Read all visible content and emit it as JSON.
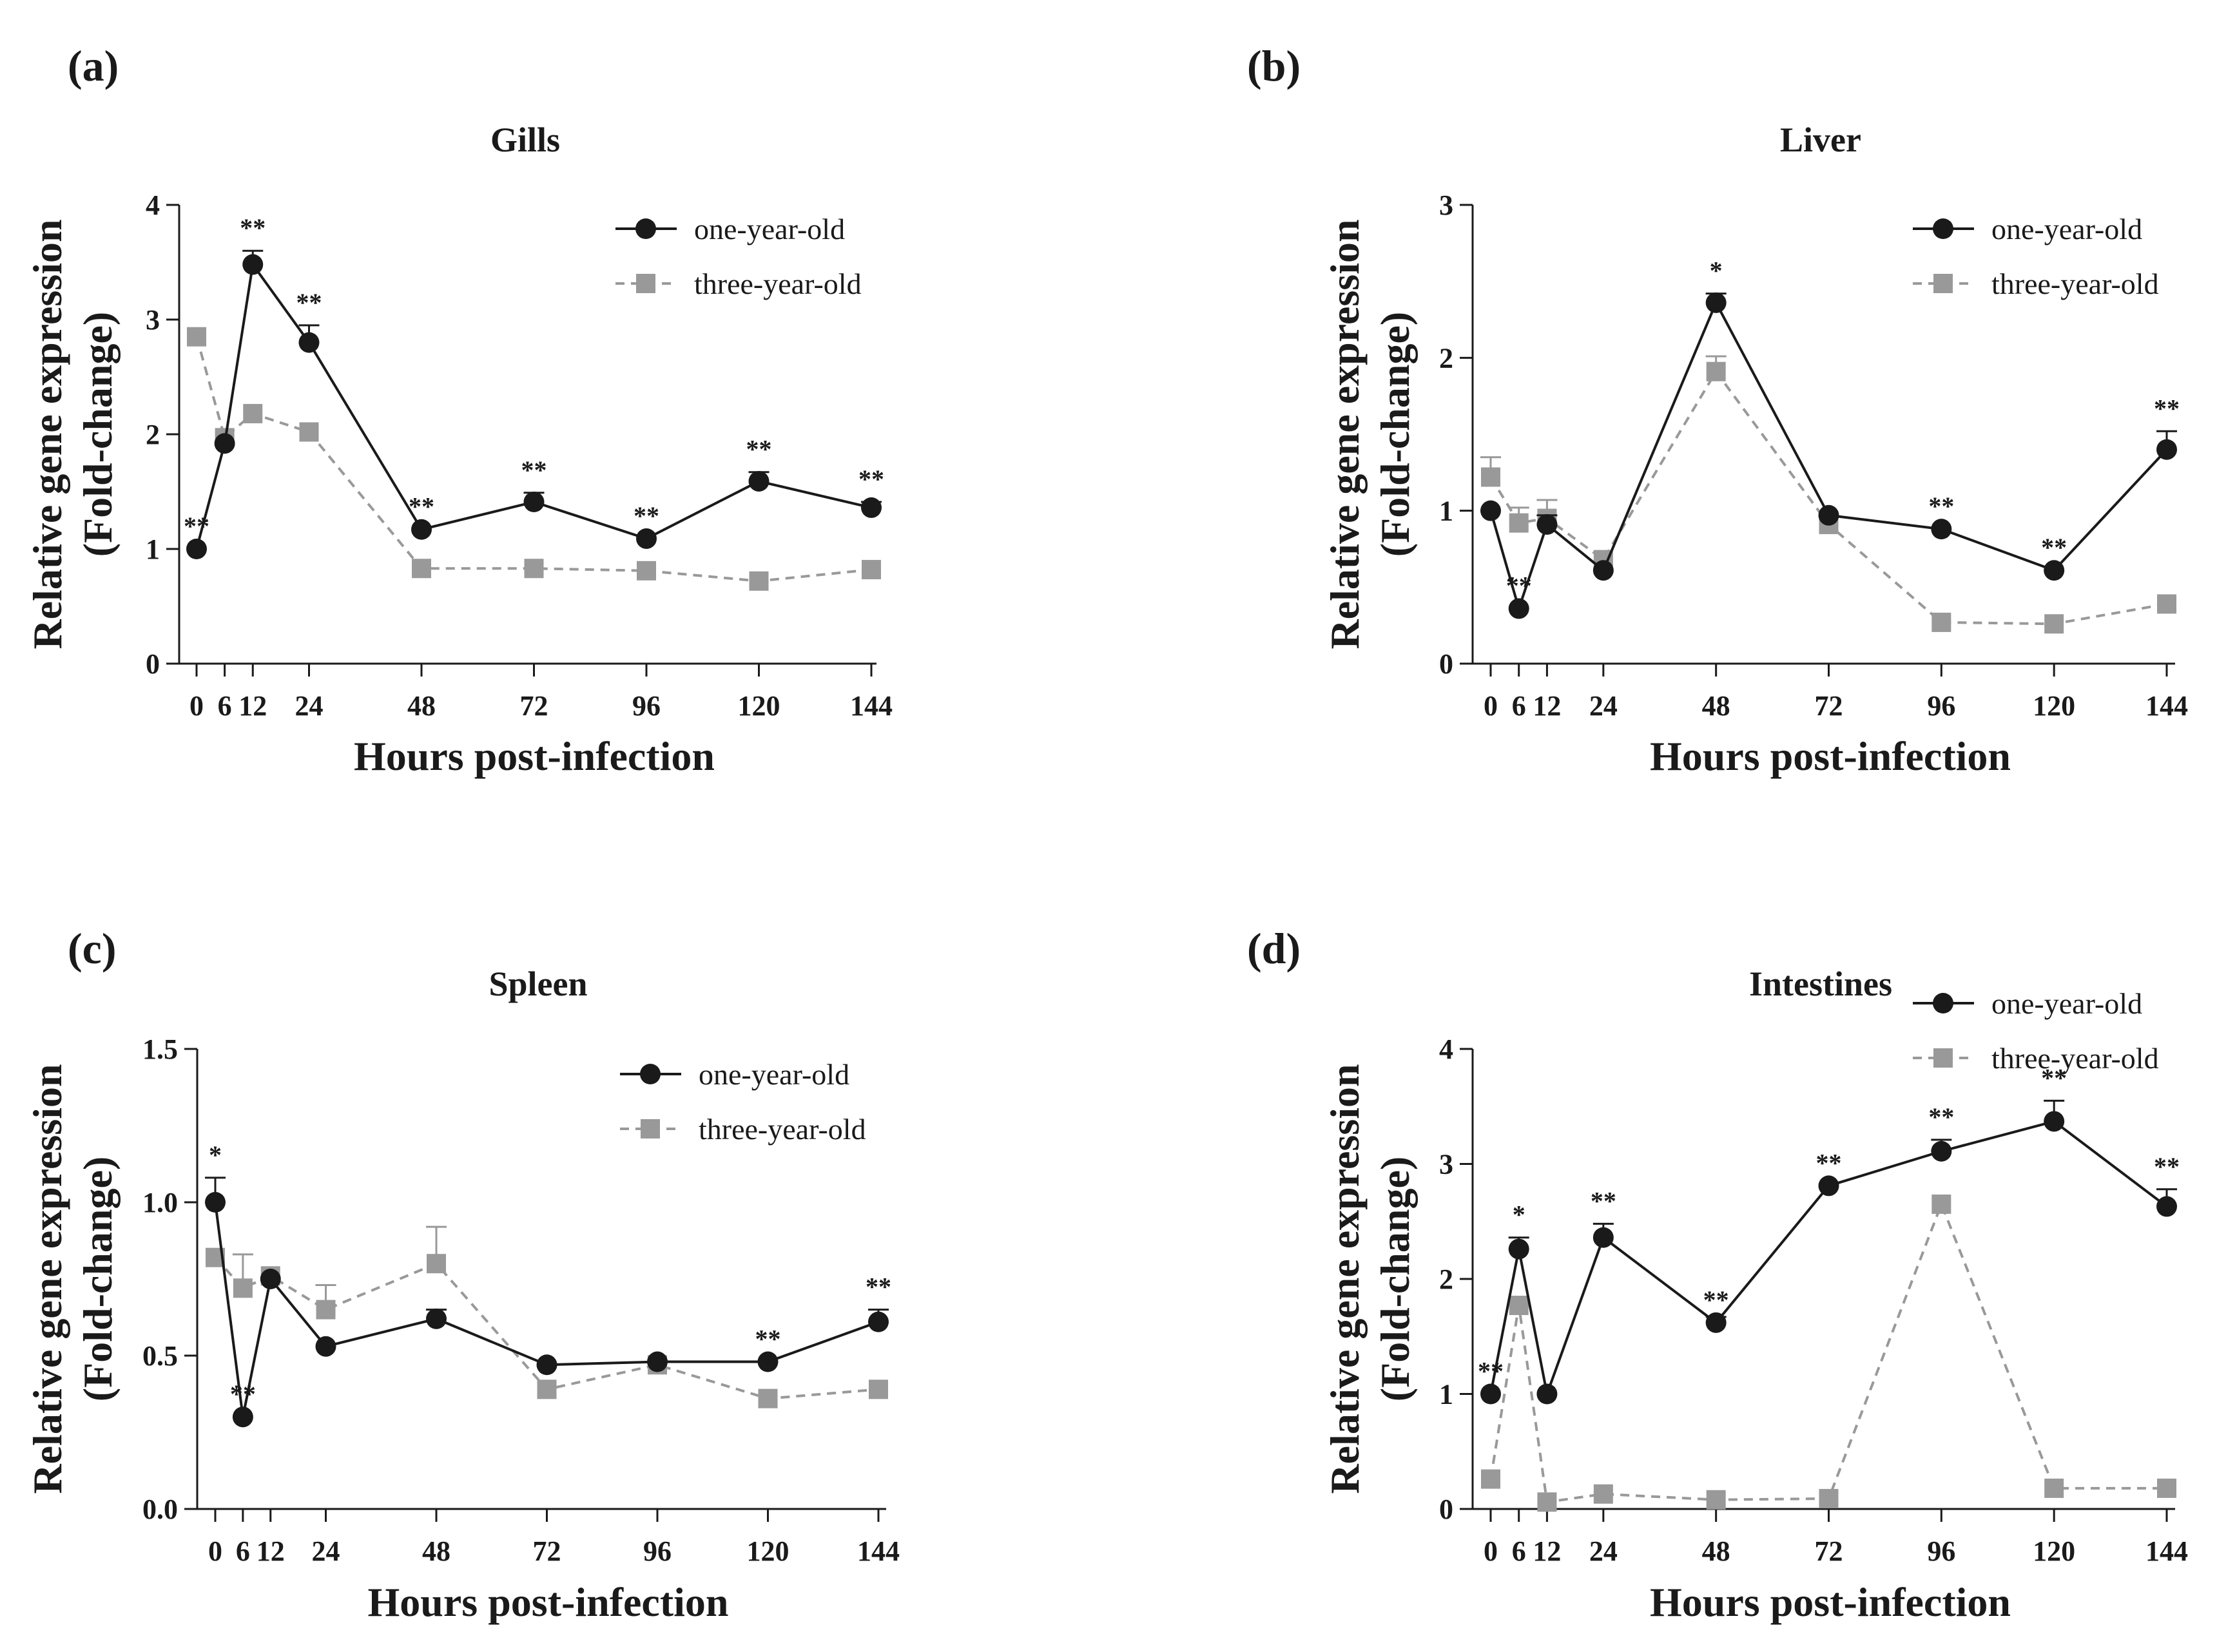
{
  "chart_data": [
    {
      "type": "line",
      "panel": "(a)",
      "title": "Gills",
      "ylabel_line1": "Relative gene expression",
      "ylabel_line2": "(Fold-change)",
      "xlabel": "Hours post-infection",
      "x": [
        0,
        6,
        12,
        24,
        48,
        72,
        96,
        120,
        144
      ],
      "ylim": [
        0,
        4
      ],
      "yticks": [
        0,
        1,
        2,
        3,
        4
      ],
      "ytick_labels": [
        "0",
        "1",
        "2",
        "3",
        "4"
      ],
      "legend_position": "top-right",
      "series": [
        {
          "name": "one-year-old",
          "style": "solid-circle",
          "color": "#1a1a1a",
          "values": [
            1.0,
            1.92,
            3.48,
            2.8,
            1.17,
            1.41,
            1.09,
            1.59,
            1.36
          ],
          "errors": [
            0,
            0,
            0.12,
            0.15,
            0,
            0.08,
            0,
            0.08,
            0.05
          ]
        },
        {
          "name": "three-year-old",
          "style": "dashed-square",
          "color": "#999999",
          "values": [
            2.85,
            1.97,
            2.18,
            2.02,
            0.83,
            0.83,
            0.81,
            0.72,
            0.82
          ],
          "errors": [
            0,
            0,
            0,
            0,
            0,
            0,
            0,
            0,
            0
          ]
        }
      ],
      "annotations": [
        {
          "x": 0,
          "y": 1.0,
          "text": "**"
        },
        {
          "x": 12,
          "y": 3.6,
          "text": "**"
        },
        {
          "x": 24,
          "y": 2.95,
          "text": "**"
        },
        {
          "x": 48,
          "y": 1.17,
          "text": "**"
        },
        {
          "x": 72,
          "y": 1.49,
          "text": "**"
        },
        {
          "x": 96,
          "y": 1.09,
          "text": "**"
        },
        {
          "x": 120,
          "y": 1.67,
          "text": "**"
        },
        {
          "x": 144,
          "y": 1.41,
          "text": "**"
        }
      ]
    },
    {
      "type": "line",
      "panel": "(b)",
      "title": "Liver",
      "ylabel_line1": "Relative gene expression",
      "ylabel_line2": "(Fold-change)",
      "xlabel": "Hours post-infection",
      "x": [
        0,
        6,
        12,
        24,
        48,
        72,
        96,
        120,
        144
      ],
      "ylim": [
        0,
        3
      ],
      "yticks": [
        0,
        1,
        2,
        3
      ],
      "ytick_labels": [
        "0",
        "1",
        "2",
        "3"
      ],
      "legend_position": "top-right",
      "series": [
        {
          "name": "one-year-old",
          "style": "solid-circle",
          "color": "#1a1a1a",
          "values": [
            1.0,
            0.36,
            0.91,
            0.61,
            2.36,
            0.97,
            0.88,
            0.61,
            1.4
          ],
          "errors": [
            0,
            0,
            0.06,
            0,
            0.06,
            0,
            0,
            0,
            0.12
          ]
        },
        {
          "name": "three-year-old",
          "style": "dashed-square",
          "color": "#999999",
          "values": [
            1.22,
            0.92,
            0.95,
            0.68,
            1.91,
            0.91,
            0.27,
            0.26,
            0.39
          ],
          "errors": [
            0.13,
            0.1,
            0.12,
            0,
            0.1,
            0,
            0,
            0,
            0
          ]
        }
      ],
      "annotations": [
        {
          "x": 6,
          "y": 0.36,
          "text": "**"
        },
        {
          "x": 48,
          "y": 2.42,
          "text": "*"
        },
        {
          "x": 96,
          "y": 0.88,
          "text": "**"
        },
        {
          "x": 120,
          "y": 0.61,
          "text": "**"
        },
        {
          "x": 144,
          "y": 1.52,
          "text": "**"
        }
      ]
    },
    {
      "type": "line",
      "panel": "(c)",
      "title": "Spleen",
      "ylabel_line1": "Relative gene expression",
      "ylabel_line2": "(Fold-change)",
      "xlabel": "Hours post-infection",
      "x": [
        0,
        6,
        12,
        24,
        48,
        72,
        96,
        120,
        144
      ],
      "ylim": [
        0,
        1.5
      ],
      "yticks": [
        0,
        0.5,
        1.0,
        1.5
      ],
      "ytick_labels": [
        "0.0",
        "0.5",
        "1.0",
        "1.5"
      ],
      "legend_position": "top-right",
      "series": [
        {
          "name": "one-year-old",
          "style": "solid-circle",
          "color": "#1a1a1a",
          "values": [
            1.0,
            0.3,
            0.75,
            0.53,
            0.62,
            0.47,
            0.48,
            0.48,
            0.61
          ],
          "errors": [
            0.08,
            0,
            0,
            0,
            0.03,
            0,
            0,
            0,
            0.04
          ]
        },
        {
          "name": "three-year-old",
          "style": "dashed-square",
          "color": "#999999",
          "values": [
            0.82,
            0.72,
            0.76,
            0.65,
            0.8,
            0.39,
            0.47,
            0.36,
            0.39
          ],
          "errors": [
            0,
            0.11,
            0,
            0.08,
            0.12,
            0,
            0,
            0,
            0
          ]
        }
      ],
      "annotations": [
        {
          "x": 0,
          "y": 1.08,
          "text": "*"
        },
        {
          "x": 6,
          "y": 0.3,
          "text": "**"
        },
        {
          "x": 120,
          "y": 0.48,
          "text": "**"
        },
        {
          "x": 144,
          "y": 0.65,
          "text": "**"
        }
      ]
    },
    {
      "type": "line",
      "panel": "(d)",
      "title": "Intestines",
      "ylabel_line1": "Relative gene expression",
      "ylabel_line2": "(Fold-change)",
      "xlabel": "Hours post-infection",
      "x": [
        0,
        6,
        12,
        24,
        48,
        72,
        96,
        120,
        144
      ],
      "ylim": [
        0,
        4
      ],
      "yticks": [
        0,
        1,
        2,
        3,
        4
      ],
      "ytick_labels": [
        "0",
        "1",
        "2",
        "3",
        "4"
      ],
      "legend_position": "top-right",
      "series": [
        {
          "name": "one-year-old",
          "style": "solid-circle",
          "color": "#1a1a1a",
          "values": [
            1.0,
            2.26,
            1.0,
            2.36,
            1.62,
            2.81,
            3.11,
            3.37,
            2.63
          ],
          "errors": [
            0,
            0.1,
            0,
            0.12,
            0.05,
            0,
            0.1,
            0.18,
            0.15
          ]
        },
        {
          "name": "three-year-old",
          "style": "dashed-square",
          "color": "#999999",
          "values": [
            0.26,
            1.77,
            0.06,
            0.13,
            0.08,
            0.09,
            2.65,
            0.18,
            0.18
          ],
          "errors": [
            0,
            0,
            0,
            0,
            0,
            0,
            0,
            0,
            0
          ]
        }
      ],
      "annotations": [
        {
          "x": 0,
          "y": 1.0,
          "text": "**"
        },
        {
          "x": 6,
          "y": 2.36,
          "text": "*"
        },
        {
          "x": 24,
          "y": 2.48,
          "text": "**"
        },
        {
          "x": 48,
          "y": 1.62,
          "text": "**"
        },
        {
          "x": 72,
          "y": 2.81,
          "text": "**"
        },
        {
          "x": 96,
          "y": 3.21,
          "text": "**"
        },
        {
          "x": 120,
          "y": 3.55,
          "text": "**"
        },
        {
          "x": 144,
          "y": 2.78,
          "text": "**"
        }
      ]
    }
  ]
}
